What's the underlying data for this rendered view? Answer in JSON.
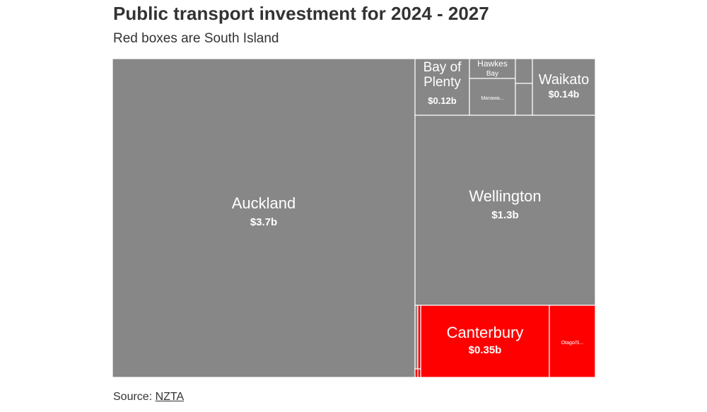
{
  "title": "Public transport investment for 2024 - 2027",
  "subtitle": "Red boxes are South Island",
  "source": {
    "prefix": "Source:",
    "link": "NZTA"
  },
  "colors": {
    "north_island": "#888787",
    "south_island": "#ff0000",
    "border": "#ffffff",
    "text": "#333333"
  },
  "chart_data": {
    "type": "treemap",
    "title": "Public transport investment for 2024 - 2027",
    "subtitle": "Red boxes are South Island",
    "unit": "$b",
    "items": [
      {
        "name": "Auckland",
        "label": "Auckland",
        "value": 3.7,
        "value_label": "$3.7b",
        "island": "North"
      },
      {
        "name": "Wellington",
        "label": "Wellington",
        "value": 1.3,
        "value_label": "$1.3b",
        "island": "North"
      },
      {
        "name": "Canterbury",
        "label": "Canterbury",
        "value": 0.35,
        "value_label": "$0.35b",
        "island": "South"
      },
      {
        "name": "Otago/S...",
        "label": "Otago/S...",
        "value": 0.12,
        "value_label": "",
        "island": "South"
      },
      {
        "name": "Waikato",
        "label": "Waikato",
        "value": 0.14,
        "value_label": "$0.14b",
        "island": "North"
      },
      {
        "name": "Bay of Plenty",
        "label": "Bay of Plenty",
        "value": 0.12,
        "value_label": "$0.12b",
        "island": "North"
      },
      {
        "name": "Hawkes Bay",
        "label": "Hawkes Bay",
        "value": 0.04,
        "value_label": "",
        "island": "North"
      },
      {
        "name": "Manawa...",
        "label": "Manawa...",
        "value": 0.04,
        "value_label": "",
        "island": "North"
      },
      {
        "name": "",
        "label": "",
        "value": 0.02,
        "value_label": "",
        "island": "North"
      },
      {
        "name": "",
        "label": "",
        "value": 0.02,
        "value_label": "",
        "island": "North"
      },
      {
        "name": "",
        "label": "",
        "value": 0.02,
        "value_label": "",
        "island": "North"
      },
      {
        "name": "",
        "label": "",
        "value": 0.01,
        "value_label": "",
        "island": "South"
      },
      {
        "name": "",
        "label": "",
        "value": 0.01,
        "value_label": "",
        "island": "South"
      },
      {
        "name": "",
        "label": "",
        "value": 0.01,
        "value_label": "",
        "island": "South"
      }
    ]
  }
}
